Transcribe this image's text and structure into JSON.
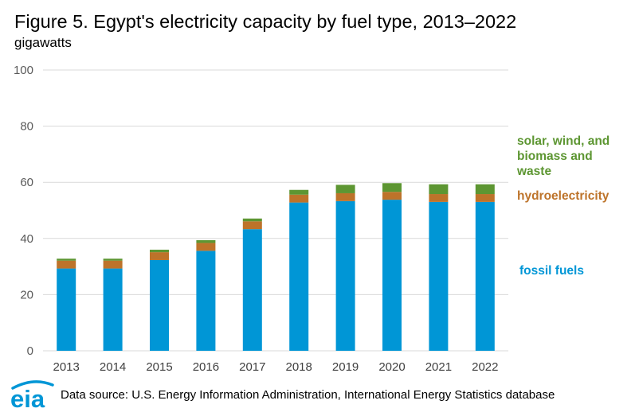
{
  "title": "Figure 5. Egypt's electricity capacity by fuel type, 2013–2022",
  "units": "gigawatts",
  "source": "Data source: U.S. Energy Information Administration, International Energy Statistics database",
  "logo_text": "eia",
  "colors": {
    "fossil": "#0096d6",
    "hydro": "#bd732a",
    "renewables": "#5d9632",
    "grid": "#d9d9d9",
    "logo": "#0096d6"
  },
  "chart_data": {
    "type": "bar",
    "stacked": true,
    "title": "Figure 5. Egypt's electricity capacity by fuel type, 2013–2022",
    "ylabel": "gigawatts",
    "xlabel": "",
    "ylim": [
      0,
      100
    ],
    "yticks": [
      "0",
      "20",
      "40",
      "60",
      "80",
      "100"
    ],
    "grid": true,
    "legend_position": "right",
    "categories": [
      "2013",
      "2014",
      "2015",
      "2016",
      "2017",
      "2018",
      "2019",
      "2020",
      "2021",
      "2022"
    ],
    "series": [
      {
        "name": "fossil fuels",
        "color_key": "fossil",
        "values": [
          29.3,
          29.3,
          32.3,
          35.6,
          43.3,
          52.8,
          53.3,
          53.8,
          53.0,
          53.0
        ]
      },
      {
        "name": "hydroelectricity",
        "color_key": "hydro",
        "values": [
          2.8,
          2.8,
          2.8,
          2.8,
          2.8,
          2.8,
          2.8,
          2.8,
          2.8,
          2.8
        ]
      },
      {
        "name": "solar, wind, and biomass and waste",
        "color_key": "renewables",
        "values": [
          0.7,
          0.7,
          0.9,
          1.0,
          1.0,
          1.7,
          3.0,
          3.1,
          3.5,
          3.5
        ]
      }
    ]
  }
}
